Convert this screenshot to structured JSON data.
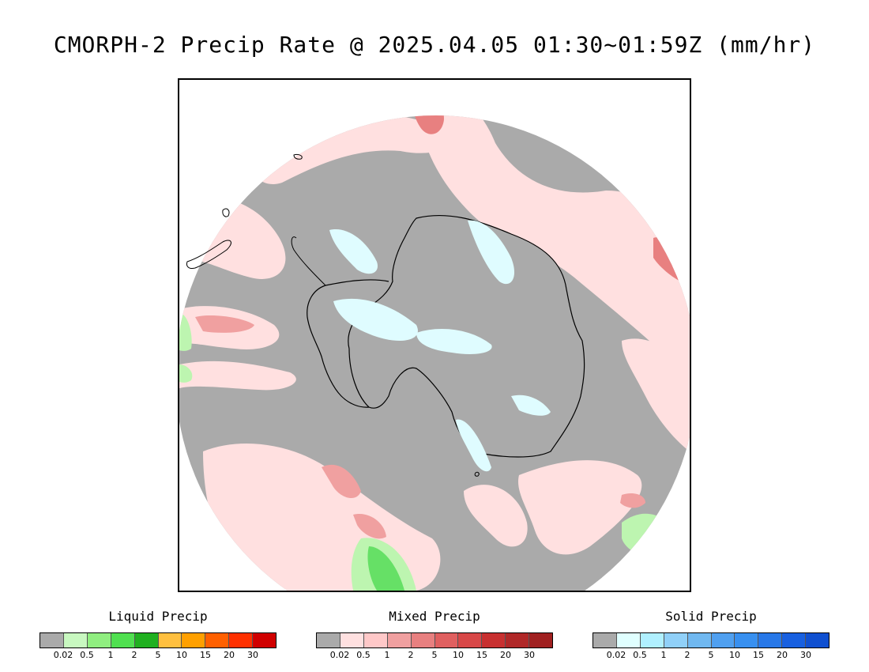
{
  "title": "CMORPH-2 Precip Rate @ 2025.04.05 01:30~01:59Z (mm/hr)",
  "map": {
    "projection": "south-polar-stereographic",
    "colors": {
      "background_precip": "#aaaaaa",
      "mixed_light": "#ffe0e0",
      "mixed_medium": "#f0a0a0",
      "mixed_heavy": "#d85858",
      "liquid_light": "#bdf5b0",
      "liquid_medium": "#66e066",
      "liquid_heavy": "#20b020",
      "solid_light": "#dffcff",
      "coastline": "#000000"
    }
  },
  "legends": [
    {
      "id": "liquid",
      "title": "Liquid Precip",
      "colors": [
        "#aaaaaa",
        "#c8f8c0",
        "#90ee80",
        "#50e050",
        "#20b020",
        "#ffc040",
        "#ffa000",
        "#ff6000",
        "#ff3000",
        "#d00000"
      ],
      "ticks": [
        "0.02",
        "0.5",
        "1",
        "2",
        "5",
        "10",
        "15",
        "20",
        "30"
      ]
    },
    {
      "id": "mixed",
      "title": "Mixed Precip",
      "colors": [
        "#aaaaaa",
        "#ffe0e0",
        "#ffc8c8",
        "#f0a0a0",
        "#e88080",
        "#e06060",
        "#d84848",
        "#c83030",
        "#b02828",
        "#a02020"
      ],
      "ticks": [
        "0.02",
        "0.5",
        "1",
        "2",
        "5",
        "10",
        "15",
        "20",
        "30"
      ]
    },
    {
      "id": "solid",
      "title": "Solid Precip",
      "colors": [
        "#aaaaaa",
        "#e0ffff",
        "#b0f0ff",
        "#90d0f8",
        "#70b8f0",
        "#50a0f0",
        "#3890f0",
        "#2878e8",
        "#1860e0",
        "#1050d0"
      ],
      "ticks": [
        "0.02",
        "0.5",
        "1",
        "2",
        "5",
        "10",
        "15",
        "20",
        "30"
      ]
    }
  ]
}
